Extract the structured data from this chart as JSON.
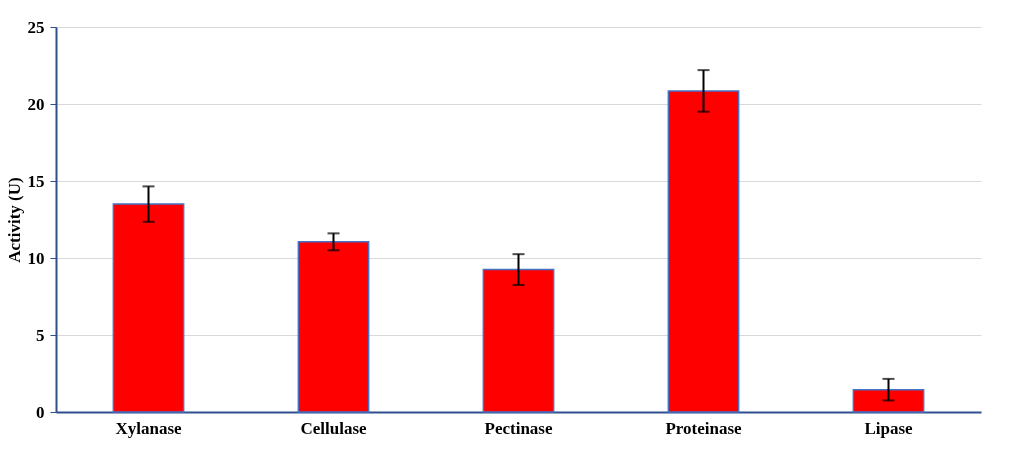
{
  "chart_data": {
    "type": "bar",
    "ylabel": "Activity (U)",
    "categories": [
      "Xylanase",
      "Cellulase",
      "Pectinase",
      "Proteinase",
      "Lipase"
    ],
    "values": [
      13.5,
      11.05,
      9.25,
      20.85,
      1.45
    ],
    "errors": [
      1.15,
      0.55,
      1.0,
      1.35,
      0.7
    ],
    "color": "#ff0000",
    "ylim": [
      0,
      25
    ],
    "yticks": [
      0,
      5,
      10,
      15,
      20,
      25
    ],
    "grid": "y"
  }
}
